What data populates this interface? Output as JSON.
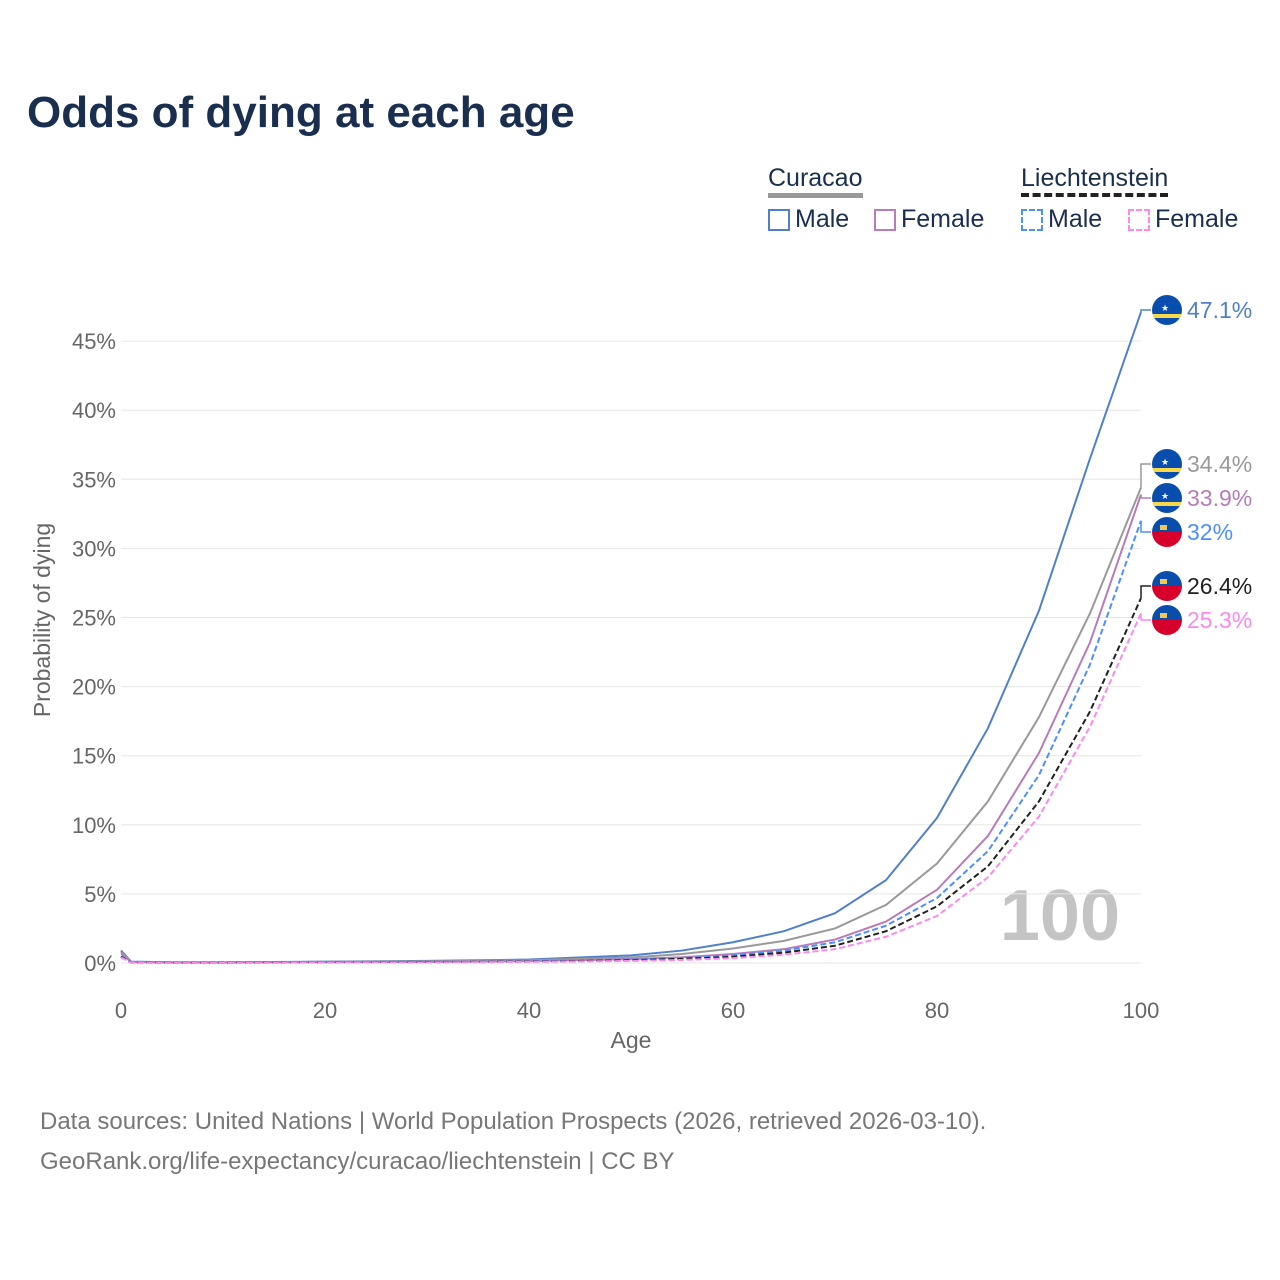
{
  "title": "Odds of dying at each age",
  "legend": {
    "groups": [
      {
        "name": "Curacao",
        "items": [
          "Male",
          "Female"
        ]
      },
      {
        "name": "Liechtenstein",
        "items": [
          "Male",
          "Female"
        ]
      }
    ]
  },
  "watermark": "100",
  "sources": [
    "Data sources: United Nations | World Population Prospects (2026, retrieved 2026-03-10).",
    "GeoRank.org/life-expectancy/curacao/liechtenstein | CC BY"
  ],
  "chart_data": {
    "type": "line",
    "xlabel": "Age",
    "ylabel": "Probability of dying",
    "xlim": [
      0,
      100
    ],
    "ylim": [
      0,
      47.1
    ],
    "xticks": [
      "0",
      "20",
      "40",
      "60",
      "80",
      "100"
    ],
    "yticks": [
      "0%",
      "5%",
      "10%",
      "15%",
      "20%",
      "25%",
      "30%",
      "35%",
      "40%",
      "45%"
    ],
    "x": [
      0,
      1,
      5,
      10,
      20,
      30,
      40,
      50,
      55,
      60,
      65,
      70,
      75,
      80,
      85,
      90,
      95,
      100
    ],
    "series": [
      {
        "name": "Curacao Male",
        "color": "#5080cc",
        "dash": false,
        "flag": "curacao",
        "label": "47.1%",
        "values": [
          0.9,
          0.1,
          0.05,
          0.05,
          0.1,
          0.15,
          0.25,
          0.55,
          0.9,
          1.5,
          2.3,
          3.6,
          6.0,
          10.5,
          17.0,
          25.5,
          36.5,
          47.1
        ]
      },
      {
        "name": "Curacao",
        "color": "#999999",
        "dash": false,
        "flag": "curacao",
        "label": "34.4%",
        "values": [
          0.8,
          0.08,
          0.04,
          0.04,
          0.08,
          0.12,
          0.2,
          0.4,
          0.65,
          1.05,
          1.6,
          2.5,
          4.2,
          7.2,
          11.7,
          17.8,
          25.3,
          34.4
        ]
      },
      {
        "name": "Curacao Female",
        "color": "#b97cb8",
        "dash": false,
        "flag": "curacao",
        "label": "33.9%",
        "values": [
          0.7,
          0.07,
          0.03,
          0.03,
          0.05,
          0.08,
          0.14,
          0.28,
          0.42,
          0.65,
          1.0,
          1.7,
          3.0,
          5.3,
          9.2,
          15.2,
          23.2,
          33.9
        ]
      },
      {
        "name": "Liechtenstein Male",
        "color": "#4c8fff",
        "dash": true,
        "flag": "liechtenstein",
        "label": "32%",
        "values": [
          0.5,
          0.04,
          0.02,
          0.02,
          0.05,
          0.07,
          0.12,
          0.25,
          0.35,
          0.55,
          0.9,
          1.5,
          2.7,
          4.7,
          8.1,
          13.6,
          21.6,
          32
        ]
      },
      {
        "name": "Liechtenstein",
        "color": "#222222",
        "dash": true,
        "flag": "liechtenstein",
        "label": "26.4%",
        "values": [
          0.45,
          0.03,
          0.02,
          0.02,
          0.04,
          0.06,
          0.1,
          0.2,
          0.3,
          0.45,
          0.75,
          1.25,
          2.3,
          4.1,
          7.0,
          11.7,
          18.2,
          26.4
        ]
      },
      {
        "name": "Liechtenstein Female",
        "color": "#ff88ee",
        "dash": true,
        "flag": "liechtenstein",
        "label": "25.3%",
        "values": [
          0.4,
          0.03,
          0.01,
          0.01,
          0.03,
          0.04,
          0.08,
          0.15,
          0.22,
          0.35,
          0.6,
          1.0,
          1.9,
          3.4,
          6.2,
          10.6,
          17.1,
          25.3
        ]
      }
    ]
  }
}
